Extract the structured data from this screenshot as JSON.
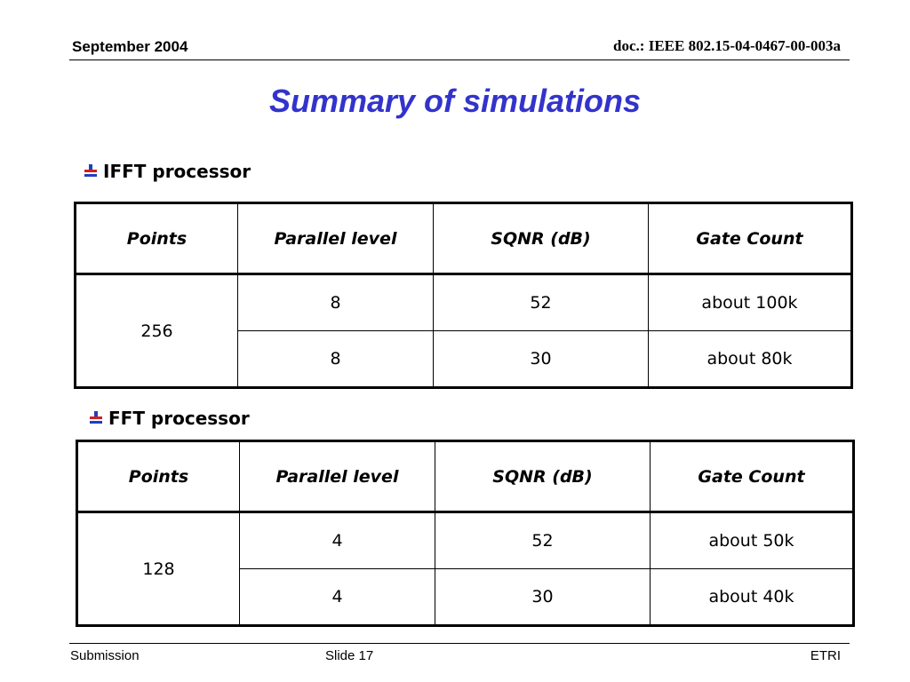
{
  "header": {
    "date": "September 2004",
    "doc_id": "doc.: IEEE 802.15-04-0467-00-003a"
  },
  "title": "Summary of simulations",
  "sections": [
    {
      "heading": "IFFT processor",
      "columns": [
        "Points",
        "Parallel level",
        "SQNR (dB)",
        "Gate Count"
      ],
      "points": "256",
      "rows": [
        {
          "parallel": "8",
          "sqnr": "52",
          "gates": "about 100k"
        },
        {
          "parallel": "8",
          "sqnr": "30",
          "gates": "about 80k"
        }
      ]
    },
    {
      "heading": "FFT processor",
      "columns": [
        "Points",
        "Parallel level",
        "SQNR (dB)",
        "Gate Count"
      ],
      "points": "128",
      "rows": [
        {
          "parallel": "4",
          "sqnr": "52",
          "gates": "about 50k"
        },
        {
          "parallel": "4",
          "sqnr": "30",
          "gates": "about 40k"
        }
      ]
    }
  ],
  "footer": {
    "left": "Submission",
    "center": "Slide 17",
    "right": "ETRI"
  },
  "colors": {
    "title": "#3333cc",
    "bullet_icon_blue": "#1f3fbf",
    "bullet_icon_red": "#d22020"
  }
}
